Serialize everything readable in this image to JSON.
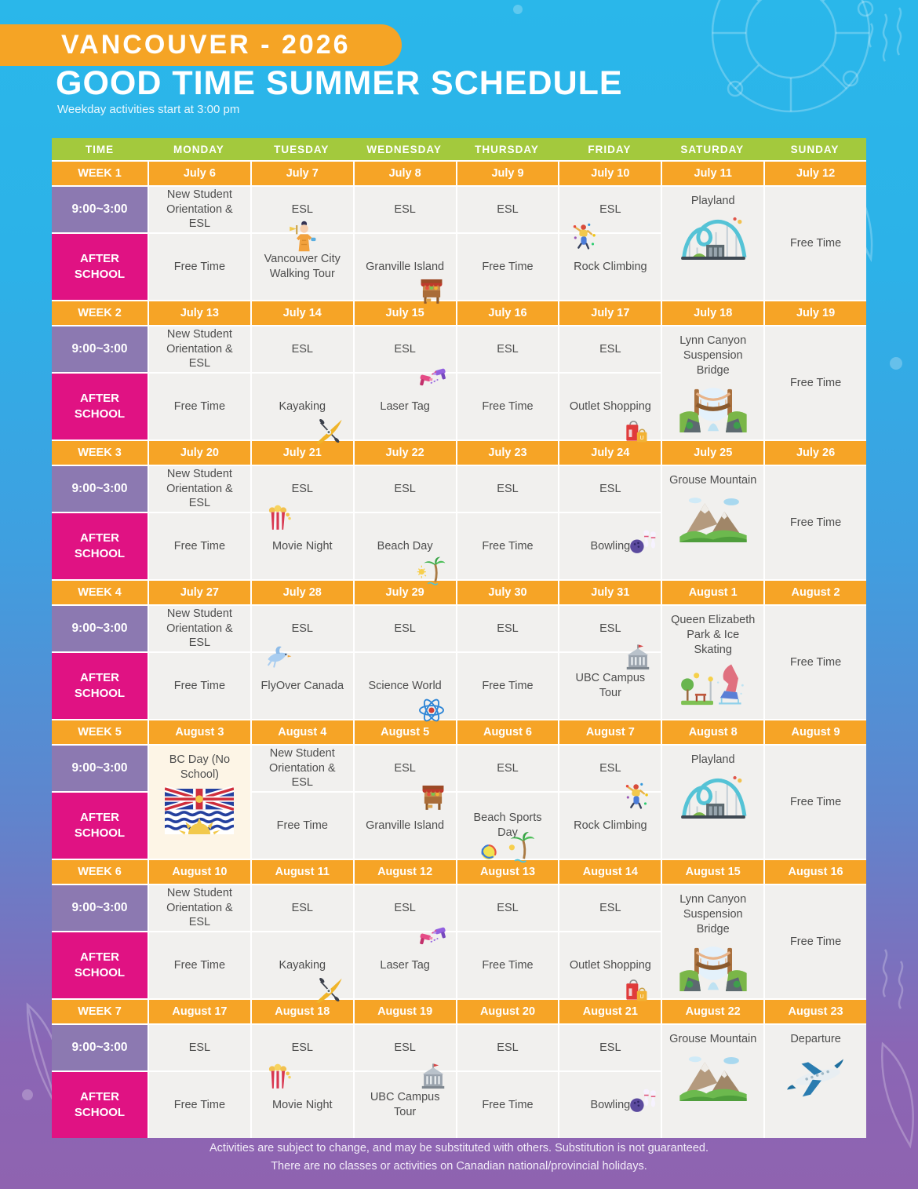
{
  "header": {
    "badge": "VANCOUVER - 2026",
    "title": "GOOD TIME SUMMER SCHEDULE",
    "subtitle": "Weekday activities start at 3:00 pm"
  },
  "colors": {
    "badge_orange": "#f5a425",
    "header_green": "#a3c93d",
    "week_orange": "#f6a426",
    "time_purple": "#8c79b1",
    "after_school_magenta": "#e01283",
    "cell_bg": "#f1f0ee",
    "holiday_cell_bg": "#fdf5e6",
    "background_top": "#2ab7ea",
    "background_bottom": "#8f63b0"
  },
  "table": {
    "columns": [
      "TIME",
      "MONDAY",
      "TUESDAY",
      "WEDNESDAY",
      "THURSDAY",
      "FRIDAY",
      "SATURDAY",
      "SUNDAY"
    ],
    "time_labels": {
      "morning": "9:00~3:00",
      "afternoon": "AFTER SCHOOL"
    },
    "weeks": [
      {
        "label": "WEEK 1",
        "dates": [
          "July 6",
          "July 7",
          "July 8",
          "July 9",
          "July 10",
          "July 11",
          "July 12"
        ],
        "days": [
          {
            "morning": "New Student Orientation & ESL",
            "afternoon": "Free Time"
          },
          {
            "morning": "ESL",
            "afternoon": "Vancouver City Walking Tour",
            "icon": "tour-guide-icon",
            "pos": "t"
          },
          {
            "morning": "ESL",
            "afternoon": "Granville Island",
            "icon": "market-stall-icon",
            "pos": "br"
          },
          {
            "morning": "ESL",
            "afternoon": "Free Time"
          },
          {
            "morning": "ESL",
            "afternoon": "Rock Climbing",
            "icon": "rock-climbing-icon",
            "pos": "tl"
          },
          {
            "merged": "Playland",
            "icon": "roller-coaster-icon"
          },
          {
            "merged": "Free Time"
          }
        ]
      },
      {
        "label": "WEEK 2",
        "dates": [
          "July 13",
          "July 14",
          "July 15",
          "July 16",
          "July 17",
          "July 18",
          "July 19"
        ],
        "days": [
          {
            "morning": "New Student Orientation & ESL",
            "afternoon": "Free Time"
          },
          {
            "morning": "ESL",
            "afternoon": "Kayaking",
            "icon": "kayak-icon",
            "pos": "br"
          },
          {
            "morning": "ESL",
            "afternoon": "Laser Tag",
            "icon": "laser-tag-icon",
            "pos": "tr"
          },
          {
            "morning": "ESL",
            "afternoon": "Free Time"
          },
          {
            "morning": "ESL",
            "afternoon": "Outlet Shopping",
            "icon": "shopping-bags-icon",
            "pos": "br"
          },
          {
            "merged": "Lynn Canyon Suspension Bridge",
            "icon": "suspension-bridge-icon"
          },
          {
            "merged": "Free Time"
          }
        ]
      },
      {
        "label": "WEEK 3",
        "dates": [
          "July 20",
          "July 21",
          "July 22",
          "July 23",
          "July 24",
          "July 25",
          "July 26"
        ],
        "days": [
          {
            "morning": "New Student Orientation & ESL",
            "afternoon": "Free Time"
          },
          {
            "morning": "ESL",
            "afternoon": "Movie Night",
            "icon": "popcorn-icon",
            "pos": "tl"
          },
          {
            "morning": "ESL",
            "afternoon": "Beach Day",
            "icon": "palm-beach-icon",
            "pos": "br"
          },
          {
            "morning": "ESL",
            "afternoon": "Free Time"
          },
          {
            "morning": "ESL",
            "afternoon": "Bowling",
            "icon": "bowling-icon",
            "pos": "r"
          },
          {
            "merged": "Grouse Mountain",
            "icon": "mountain-icon"
          },
          {
            "merged": "Free Time"
          }
        ]
      },
      {
        "label": "WEEK 4",
        "dates": [
          "July 27",
          "July 28",
          "July 29",
          "July 30",
          "July 31",
          "August 1",
          "August 2"
        ],
        "days": [
          {
            "morning": "New Student Orientation & ESL",
            "afternoon": "Free Time"
          },
          {
            "morning": "ESL",
            "afternoon": "FlyOver Canada",
            "icon": "bird-icon",
            "pos": "tl"
          },
          {
            "morning": "ESL",
            "afternoon": "Science World",
            "icon": "atom-icon",
            "pos": "br"
          },
          {
            "morning": "ESL",
            "afternoon": "Free Time"
          },
          {
            "morning": "ESL",
            "afternoon": "UBC Campus Tour",
            "icon": "school-building-icon",
            "pos": "tr"
          },
          {
            "merged": "Queen Elizabeth Park & Ice Skating",
            "icon": "park-skating-icon"
          },
          {
            "merged": "Free Time"
          }
        ]
      },
      {
        "label": "WEEK 5",
        "dates": [
          "August 3",
          "August 4",
          "August 5",
          "August 6",
          "August 7",
          "August 8",
          "August 9"
        ],
        "days": [
          {
            "merged": "BC Day (No School)",
            "icon": "bc-flag-icon",
            "highlight": true
          },
          {
            "morning": "New Student Orientation & ESL",
            "afternoon": "Free Time"
          },
          {
            "morning": "ESL",
            "afternoon": "Granville Island",
            "icon": "market-stall-icon",
            "pos": "tr"
          },
          {
            "morning": "ESL",
            "afternoon": "Beach Sports Day",
            "icon": "beach-sports-icon",
            "pos": "b"
          },
          {
            "morning": "ESL",
            "afternoon": "Rock Climbing",
            "icon": "rock-climbing-icon",
            "pos": "tr"
          },
          {
            "merged": "Playland",
            "icon": "roller-coaster-icon"
          },
          {
            "merged": "Free Time"
          }
        ]
      },
      {
        "label": "WEEK 6",
        "dates": [
          "August 10",
          "August 11",
          "August 12",
          "August 13",
          "August 14",
          "August 15",
          "August 16"
        ],
        "days": [
          {
            "morning": "New Student Orientation & ESL",
            "afternoon": "Free Time"
          },
          {
            "morning": "ESL",
            "afternoon": "Kayaking",
            "icon": "kayak-icon",
            "pos": "br"
          },
          {
            "morning": "ESL",
            "afternoon": "Laser Tag",
            "icon": "laser-tag-icon",
            "pos": "tr"
          },
          {
            "morning": "ESL",
            "afternoon": "Free Time"
          },
          {
            "morning": "ESL",
            "afternoon": "Outlet Shopping",
            "icon": "shopping-bags-icon",
            "pos": "br"
          },
          {
            "merged": "Lynn Canyon Suspension Bridge",
            "icon": "suspension-bridge-icon"
          },
          {
            "merged": "Free Time"
          }
        ]
      },
      {
        "label": "WEEK 7",
        "dates": [
          "August 17",
          "August 18",
          "August 19",
          "August 20",
          "August 21",
          "August 22",
          "August 23"
        ],
        "days": [
          {
            "morning": "ESL",
            "afternoon": "Free Time"
          },
          {
            "morning": "ESL",
            "afternoon": "Movie Night",
            "icon": "popcorn-icon",
            "pos": "tl"
          },
          {
            "morning": "ESL",
            "afternoon": "UBC Campus Tour",
            "icon": "school-building-icon",
            "pos": "tr"
          },
          {
            "morning": "ESL",
            "afternoon": "Free Time"
          },
          {
            "morning": "ESL",
            "afternoon": "Bowling",
            "icon": "bowling-icon",
            "pos": "r"
          },
          {
            "merged": "Grouse Mountain",
            "icon": "mountain-icon"
          },
          {
            "merged": "Departure",
            "icon": "airplane-icon"
          }
        ]
      }
    ]
  },
  "footer": {
    "line1": "Activities are subject to change, and may be substituted with others. Substitution is not guaranteed.",
    "line2": "There are no classes or activities on Canadian national/provincial holidays."
  }
}
